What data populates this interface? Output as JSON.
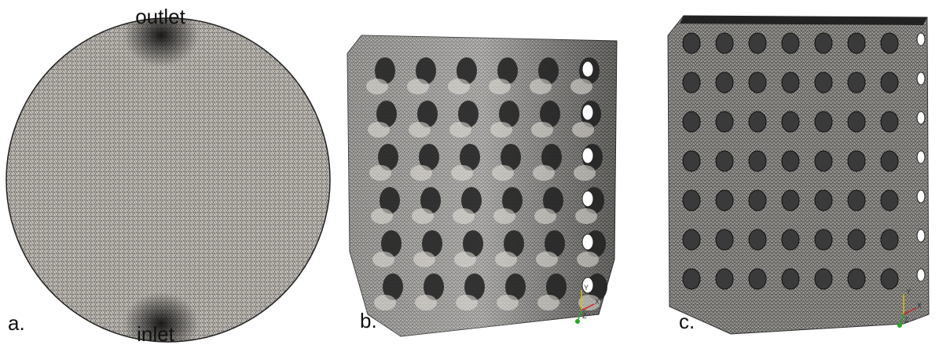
{
  "panels": [
    {
      "label": "a.",
      "annotations": {
        "top": "outlet",
        "bottom": "inlet"
      }
    },
    {
      "label": "b.",
      "axes": [
        "Y",
        "X",
        "Z"
      ]
    },
    {
      "label": "c.",
      "axes": [
        "Y",
        "X",
        "Z"
      ]
    }
  ]
}
